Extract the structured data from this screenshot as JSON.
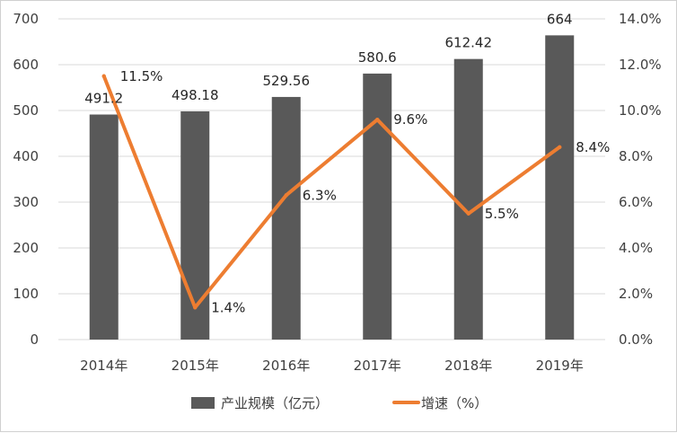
{
  "chart_data": {
    "type": "bar",
    "categories": [
      "2014年",
      "2015年",
      "2016年",
      "2017年",
      "2018年",
      "2019年"
    ],
    "series": [
      {
        "name": "产业规模（亿元）",
        "type": "bar",
        "axis": "left",
        "values": [
          491.2,
          498.18,
          529.56,
          580.6,
          612.42,
          664
        ],
        "labels": [
          "491.2",
          "498.18",
          "529.56",
          "580.6",
          "612.42",
          "664"
        ]
      },
      {
        "name": "增速（%）",
        "type": "line",
        "axis": "right",
        "values": [
          11.5,
          1.4,
          6.3,
          9.6,
          5.5,
          8.4
        ],
        "labels": [
          "11.5%",
          "1.4%",
          "6.3%",
          "9.6%",
          "5.5%",
          "8.4%"
        ]
      }
    ],
    "left_axis": {
      "ylim": [
        0,
        700
      ],
      "ticks": [
        "0",
        "100",
        "200",
        "300",
        "400",
        "500",
        "600",
        "700"
      ]
    },
    "right_axis": {
      "ylim": [
        0,
        14
      ],
      "ticks": [
        "0.0%",
        "2.0%",
        "4.0%",
        "6.0%",
        "8.0%",
        "10.0%",
        "12.0%",
        "14.0%"
      ]
    },
    "grid": true,
    "legend": "bottom",
    "colors": {
      "bar": "#595959",
      "line": "#ED7D31",
      "grid": "#D9D9D9",
      "axis_text": "#404040"
    }
  }
}
